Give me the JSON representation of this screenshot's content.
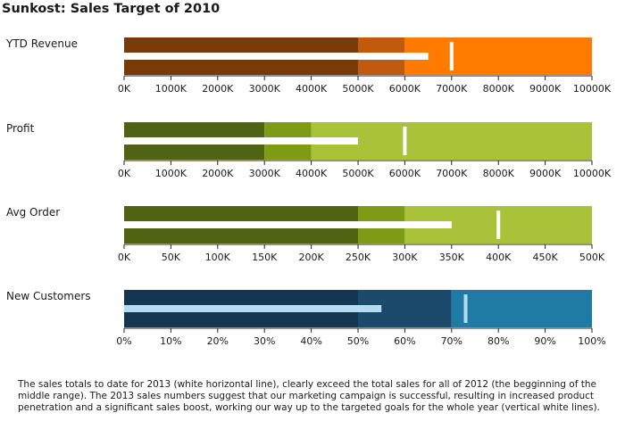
{
  "title": "Sunkost: Sales Target of 2010",
  "caption": "The sales totals to date for 2013 (white horizontal line), clearly exceed the total sales for all of 2012 (the begginning of the middle range). The 2013 sales numbers suggest that our marketing campaign is successful, resulting in increased product penetration and a significant sales boost, working our way up to the targeted goals for the whole year (vertical white lines).",
  "chart_data": [
    {
      "type": "bullet",
      "label": "YTD Revenue",
      "ranges": [
        5000,
        6000,
        10000
      ],
      "actual": 6500,
      "target": 7000,
      "xlim": [
        0,
        10000
      ],
      "ticks": [
        "0K",
        "1000K",
        "2000K",
        "3000K",
        "4000K",
        "5000K",
        "6000K",
        "7000K",
        "8000K",
        "9000K",
        "10000K"
      ],
      "colors": {
        "ranges": [
          "#7a3a08",
          "#bf5a0f",
          "#ff7b00"
        ],
        "actual": "#ffffff",
        "target": "#ffffff"
      }
    },
    {
      "type": "bullet",
      "label": "Profit",
      "ranges": [
        3000,
        4000,
        10000
      ],
      "actual": 5000,
      "target": 6000,
      "xlim": [
        0,
        10000
      ],
      "ticks": [
        "0K",
        "1000K",
        "2000K",
        "3000K",
        "4000K",
        "5000K",
        "6000K",
        "7000K",
        "8000K",
        "9000K",
        "10000K"
      ],
      "colors": {
        "ranges": [
          "#4f6313",
          "#7f9a16",
          "#a9c23a"
        ],
        "actual": "#ffffff",
        "target": "#ffffff"
      }
    },
    {
      "type": "bullet",
      "label": "Avg Order",
      "ranges": [
        250,
        300,
        500
      ],
      "actual": 350,
      "target": 400,
      "xlim": [
        0,
        500
      ],
      "ticks": [
        "0K",
        "50K",
        "100K",
        "150K",
        "200K",
        "250K",
        "300K",
        "350K",
        "400K",
        "450K",
        "500K"
      ],
      "colors": {
        "ranges": [
          "#4f6313",
          "#7f9a16",
          "#a9c23a"
        ],
        "actual": "#ffffff",
        "target": "#ffffff"
      }
    },
    {
      "type": "bullet",
      "label": "New Customers",
      "ranges": [
        50,
        70,
        100
      ],
      "actual": 55,
      "target": 73,
      "xlim": [
        0,
        100
      ],
      "ticks": [
        "0%",
        "10%",
        "20%",
        "30%",
        "40%",
        "50%",
        "60%",
        "70%",
        "80%",
        "90%",
        "100%"
      ],
      "colors": {
        "ranges": [
          "#153650",
          "#1b4a6b",
          "#207ba4"
        ],
        "actual": "#b3dcf2",
        "target": "#b3dcf2"
      }
    }
  ]
}
